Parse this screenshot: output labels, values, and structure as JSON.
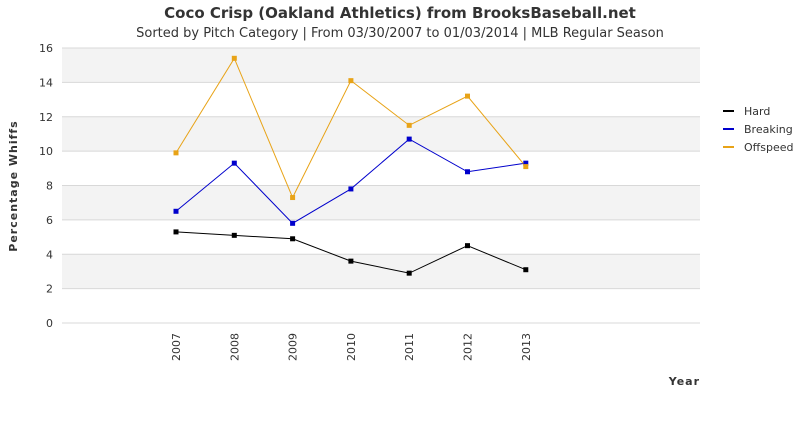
{
  "chart_data": {
    "type": "line",
    "title": "Coco Crisp (Oakland Athletics) from BrooksBaseball.net",
    "subtitle": "Sorted by Pitch Category | From 03/30/2007 to 01/03/2014 | MLB Regular Season",
    "xlabel": "Year",
    "ylabel": "Percentage Whiffs",
    "categories": [
      "2007",
      "2008",
      "2009",
      "2010",
      "2011",
      "2012",
      "2013"
    ],
    "ylim": [
      0,
      16
    ],
    "yticks": [
      "0",
      "2",
      "4",
      "6",
      "8",
      "10",
      "12",
      "14",
      "16"
    ],
    "grid": true,
    "legend_position": "right",
    "series": [
      {
        "name": "Hard",
        "color": "#000000",
        "values": [
          5.3,
          5.1,
          4.9,
          3.6,
          2.9,
          4.5,
          3.1
        ]
      },
      {
        "name": "Breaking",
        "color": "#0000cc",
        "values": [
          6.5,
          9.3,
          5.8,
          7.8,
          10.7,
          8.8,
          9.3
        ]
      },
      {
        "name": "Offspeed",
        "color": "#e8a317",
        "values": [
          9.9,
          15.4,
          7.3,
          14.1,
          11.5,
          13.2,
          9.1
        ]
      }
    ]
  }
}
